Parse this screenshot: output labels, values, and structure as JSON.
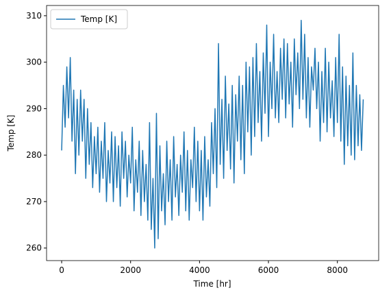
{
  "chart_data": {
    "type": "line",
    "xlabel": "Time [hr]",
    "ylabel": "Temp [K]",
    "x": [
      0,
      50,
      100,
      150,
      200,
      250,
      300,
      350,
      400,
      450,
      500,
      550,
      600,
      650,
      700,
      750,
      800,
      850,
      900,
      950,
      1000,
      1050,
      1100,
      1150,
      1200,
      1250,
      1300,
      1350,
      1400,
      1450,
      1500,
      1550,
      1600,
      1650,
      1700,
      1750,
      1800,
      1850,
      1900,
      1950,
      2000,
      2050,
      2100,
      2150,
      2200,
      2250,
      2300,
      2350,
      2400,
      2450,
      2500,
      2550,
      2600,
      2650,
      2700,
      2750,
      2800,
      2850,
      2900,
      2950,
      3000,
      3050,
      3100,
      3150,
      3200,
      3250,
      3300,
      3350,
      3400,
      3450,
      3500,
      3550,
      3600,
      3650,
      3700,
      3750,
      3800,
      3850,
      3900,
      3950,
      4000,
      4050,
      4100,
      4150,
      4200,
      4250,
      4300,
      4350,
      4400,
      4450,
      4500,
      4550,
      4600,
      4650,
      4700,
      4750,
      4800,
      4850,
      4900,
      4950,
      5000,
      5050,
      5100,
      5150,
      5200,
      5250,
      5300,
      5350,
      5400,
      5450,
      5500,
      5550,
      5600,
      5650,
      5700,
      5750,
      5800,
      5850,
      5900,
      5950,
      6000,
      6050,
      6100,
      6150,
      6200,
      6250,
      6300,
      6350,
      6400,
      6450,
      6500,
      6550,
      6600,
      6650,
      6700,
      6750,
      6800,
      6850,
      6900,
      6950,
      7000,
      7050,
      7100,
      7150,
      7200,
      7250,
      7300,
      7350,
      7400,
      7450,
      7500,
      7550,
      7600,
      7650,
      7700,
      7750,
      7800,
      7850,
      7900,
      7950,
      8000,
      8050,
      8100,
      8150,
      8200,
      8250,
      8300,
      8350,
      8400,
      8450,
      8500,
      8550,
      8600,
      8650,
      8700,
      8750
    ],
    "series": [
      {
        "name": "Temp [K]",
        "color": "#1f77b4",
        "values": [
          281,
          295,
          286,
          299,
          288,
          301,
          283,
          294,
          276,
          292,
          280,
          294,
          283,
          292,
          275,
          290,
          278,
          287,
          273,
          284,
          276,
          286,
          272,
          283,
          275,
          287,
          270,
          281,
          274,
          285,
          270,
          284,
          273,
          282,
          269,
          285,
          275,
          283,
          271,
          280,
          274,
          286,
          268,
          279,
          272,
          283,
          267,
          281,
          270,
          278,
          266,
          287,
          264,
          275,
          260,
          289,
          262,
          282,
          268,
          276,
          265,
          283,
          270,
          279,
          266,
          284,
          271,
          278,
          267,
          280,
          272,
          285,
          268,
          281,
          266,
          279,
          273,
          286,
          270,
          283,
          268,
          281,
          266,
          284,
          271,
          279,
          269,
          287,
          276,
          290,
          273,
          304,
          278,
          292,
          275,
          297,
          281,
          291,
          277,
          295,
          274,
          293,
          283,
          297,
          279,
          295,
          276,
          300,
          285,
          299,
          280,
          301,
          284,
          304,
          287,
          298,
          283,
          302,
          289,
          308,
          284,
          300,
          290,
          306,
          288,
          298,
          287,
          303,
          292,
          305,
          288,
          304,
          291,
          300,
          286,
          305,
          293,
          302,
          290,
          309,
          292,
          306,
          288,
          301,
          286,
          299,
          294,
          303,
          290,
          300,
          283,
          298,
          287,
          303,
          285,
          300,
          288,
          296,
          284,
          301,
          287,
          306,
          283,
          299,
          278,
          297,
          282,
          295,
          280,
          302,
          279,
          295,
          282,
          293,
          281,
          292
        ]
      }
    ],
    "xlim": [
      -438,
      9198
    ],
    "ylim": [
      257.3,
      312.2
    ],
    "xticks": [
      0,
      2000,
      4000,
      6000,
      8000
    ],
    "yticks": [
      260,
      270,
      280,
      290,
      300,
      310
    ],
    "legend": "upper left"
  }
}
